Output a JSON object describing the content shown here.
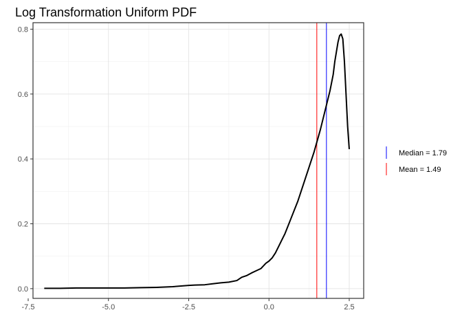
{
  "chart_data": {
    "type": "line",
    "title": "Log Transformation Uniform PDF",
    "xlabel": "",
    "ylabel": "",
    "xlim": [
      -7.35,
      2.95
    ],
    "ylim": [
      -0.03,
      0.82
    ],
    "x_ticks": [
      -7.5,
      -5.0,
      -2.5,
      0.0,
      2.5
    ],
    "x_tick_labels": [
      "-7.5",
      "-5.0",
      "-2.5",
      "0.0",
      "2.5"
    ],
    "y_ticks": [
      0.0,
      0.2,
      0.4,
      0.6,
      0.8
    ],
    "y_tick_labels": [
      "0.0",
      "0.2",
      "0.4",
      "0.6",
      "0.8"
    ],
    "grid": true,
    "legend_position": "right",
    "series": [
      {
        "color": "#000000",
        "x": [
          -7.0,
          -6.5,
          -6.0,
          -5.5,
          -5.0,
          -4.5,
          -4.0,
          -3.5,
          -3.0,
          -2.5,
          -2.3,
          -2.0,
          -1.75,
          -1.5,
          -1.25,
          -1.0,
          -0.85,
          -0.7,
          -0.55,
          -0.4,
          -0.25,
          -0.1,
          0.0,
          0.1,
          0.2,
          0.3,
          0.4,
          0.5,
          0.6,
          0.7,
          0.8,
          0.9,
          1.0,
          1.1,
          1.2,
          1.3,
          1.4,
          1.5,
          1.6,
          1.7,
          1.8,
          1.9,
          2.0,
          2.05,
          2.1,
          2.15,
          2.2,
          2.25,
          2.3,
          2.35,
          2.4,
          2.45,
          2.5
        ],
        "y": [
          0.001,
          0.001,
          0.002,
          0.002,
          0.002,
          0.002,
          0.003,
          0.004,
          0.006,
          0.01,
          0.011,
          0.012,
          0.015,
          0.018,
          0.02,
          0.025,
          0.035,
          0.04,
          0.048,
          0.055,
          0.062,
          0.078,
          0.085,
          0.095,
          0.11,
          0.13,
          0.15,
          0.17,
          0.195,
          0.22,
          0.245,
          0.27,
          0.3,
          0.33,
          0.36,
          0.39,
          0.42,
          0.455,
          0.49,
          0.53,
          0.57,
          0.61,
          0.66,
          0.7,
          0.73,
          0.76,
          0.78,
          0.785,
          0.77,
          0.7,
          0.6,
          0.5,
          0.43
        ]
      }
    ],
    "vlines": [
      {
        "label": "Median = 1.79",
        "x": 1.79,
        "color": "#0000ff"
      },
      {
        "label": "Mean = 1.49",
        "x": 1.49,
        "color": "#ff0000"
      }
    ]
  }
}
